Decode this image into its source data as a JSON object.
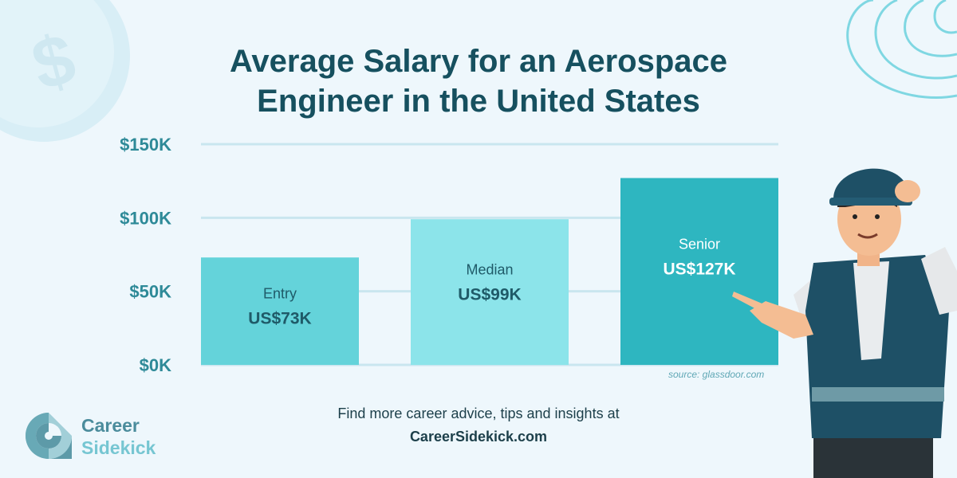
{
  "title_line1": "Average Salary for an Aerospace",
  "title_line2": "Engineer in the United States",
  "colors": {
    "title": "#16505f",
    "axis_text": "#2e8a98",
    "grid": "#c9e6ef",
    "bar_entry": "#64d3da",
    "bar_median": "#8ce4ea",
    "bar_senior": "#2eb6c0",
    "bar_label": "#1f5a68",
    "bar_label_light": "#ffffff"
  },
  "chart_data": {
    "type": "bar",
    "categories": [
      "Entry",
      "Median",
      "Senior"
    ],
    "values": [
      73,
      99,
      127
    ],
    "value_labels": [
      "US$73K",
      "US$99K",
      "US$127K"
    ],
    "ylim": [
      0,
      150
    ],
    "yticks": [
      0,
      50,
      100,
      150
    ],
    "ytick_labels": [
      "$0K",
      "$50K",
      "$100K",
      "$150K"
    ],
    "grid": true,
    "title": "Average Salary for an Aerospace Engineer in the United States",
    "xlabel": "",
    "ylabel": ""
  },
  "source": "source: glassdoor.com",
  "footer": {
    "line1": "Find more career advice, tips and insights at",
    "line2": "CareerSidekick.com"
  },
  "logo": {
    "line1": "Career",
    "line2": "Sidekick",
    "icon": "career-sidekick-c-logo"
  }
}
